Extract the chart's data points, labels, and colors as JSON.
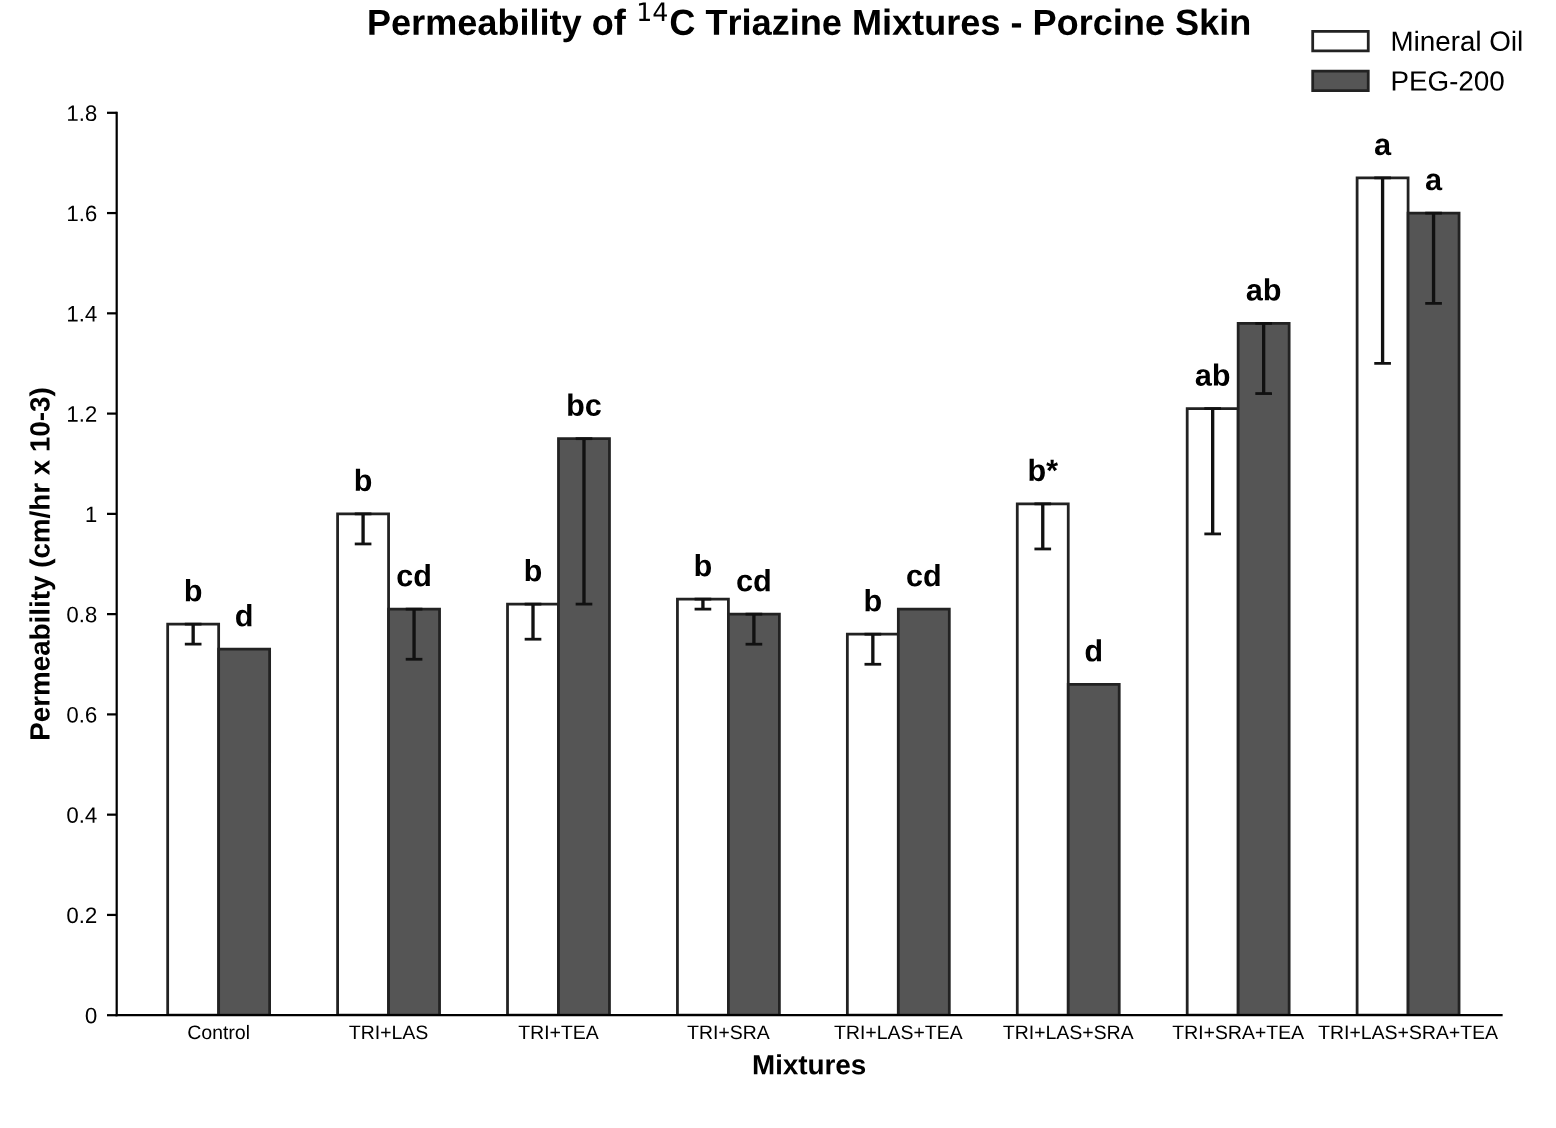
{
  "chart_data": {
    "type": "bar",
    "title": "Permeability of $^{14}$C Triazine Mixtures - Porcine Skin",
    "xlabel": "Mixtures",
    "ylabel": "Permeability (cm/hr x 10-3)",
    "categories": [
      "Control",
      "TRI+LAS",
      "TRI+TEA",
      "TRI+SRA",
      "TRI+LAS+TEA",
      "TRI+LAS+SRA",
      "TRI+SRA+TEA",
      "TRI+LAS+SRA+TEA"
    ],
    "series": [
      {
        "name": "Mineral Oil",
        "color": "#ffffff",
        "values": [
          0.78,
          1.0,
          0.82,
          0.83,
          0.76,
          1.02,
          1.21,
          1.67
        ],
        "errors": [
          [
            0.74,
            0.78
          ],
          [
            0.94,
            1.0
          ],
          [
            0.75,
            0.82
          ],
          [
            0.81,
            0.83
          ],
          [
            0.7,
            0.76
          ],
          [
            0.93,
            1.02
          ],
          [
            0.96,
            1.21
          ],
          [
            1.3,
            1.67
          ]
        ],
        "value_labels": [
          "b",
          "b",
          "b",
          "b",
          "b",
          "b*",
          "ab",
          "a"
        ]
      },
      {
        "name": "PEG-200",
        "color": "#555555",
        "values": [
          0.73,
          0.81,
          1.15,
          0.8,
          0.81,
          0.66,
          1.38,
          1.6
        ],
        "errors": [
          null,
          [
            0.71,
            0.81
          ],
          [
            0.82,
            1.15
          ],
          [
            0.74,
            0.8
          ],
          null,
          null,
          [
            1.24,
            1.38
          ],
          [
            1.42,
            1.6
          ]
        ],
        "value_labels": [
          "d",
          "cd",
          "bc",
          "cd",
          "cd",
          "d",
          "ab",
          "a"
        ]
      }
    ],
    "ylim": [
      0,
      1.8
    ],
    "yticks": [
      0,
      {
        "value": 0.2,
        "label": "0.2"
      },
      {
        "value": 0.4,
        "label": "0.4"
      },
      {
        "value": 0.6,
        "label": "0.6"
      },
      {
        "value": 0.8,
        "label": "0.8"
      },
      1,
      {
        "value": 1.2,
        "label": "1.2"
      },
      {
        "value": 1.4,
        "label": "1.4"
      },
      {
        "value": 1.6,
        "label": "1.6"
      },
      {
        "value": 1.8,
        "label": "1.8"
      }
    ],
    "grid": false,
    "legend": "top right"
  }
}
